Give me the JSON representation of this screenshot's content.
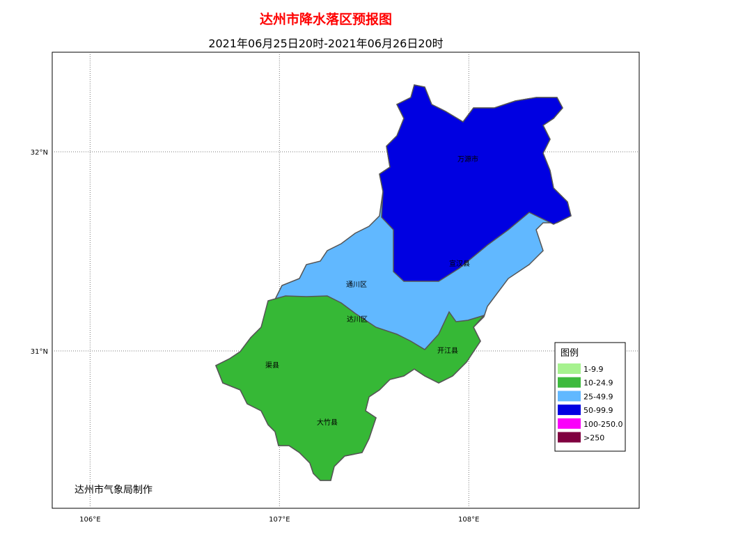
{
  "title": "达州市降水落区预报图",
  "subtitle": "2021年06月25日20时-2021年06月26日20时",
  "map": {
    "lon_range": [
      105.8,
      108.9
    ],
    "lat_range": [
      30.21,
      32.5
    ],
    "lon_ticks": [
      {
        "value": 106,
        "label": "106°E"
      },
      {
        "value": 107,
        "label": "107°E"
      },
      {
        "value": 108,
        "label": "108°E"
      }
    ],
    "lat_ticks": [
      {
        "value": 32,
        "label": "32°N"
      },
      {
        "value": 31,
        "label": "31°N"
      }
    ],
    "regions": [
      "万源市",
      "宣汉县",
      "通川区",
      "达川区",
      "开江县",
      "渠县",
      "大竹县"
    ]
  },
  "legend": {
    "title": "图例",
    "items": [
      {
        "label": "1-9.9",
        "color": "#a6f28f"
      },
      {
        "label": "10-24.9",
        "color": "#3dba3d"
      },
      {
        "label": "25-49.9",
        "color": "#61b8ff"
      },
      {
        "label": "50-99.9",
        "color": "#0000e1"
      },
      {
        "label": "100-250.0",
        "color": "#fa00fa"
      },
      {
        "label": ">250",
        "color": "#800040"
      }
    ]
  },
  "credit": "达州市气象局制作"
}
